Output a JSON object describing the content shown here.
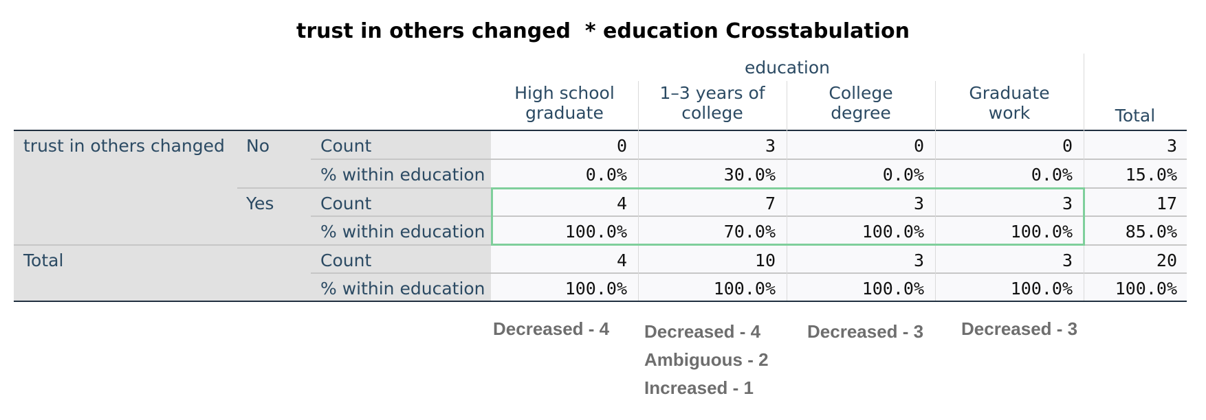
{
  "title": "trust in others changed  * education Crosstabulation",
  "column_group_label": "education",
  "columns": [
    {
      "line1": "High school",
      "line2": "graduate"
    },
    {
      "line1": "1–3 years of",
      "line2": "college"
    },
    {
      "line1": "College",
      "line2": "degree"
    },
    {
      "line1": "Graduate",
      "line2": "work"
    }
  ],
  "total_column_label": "Total",
  "row_variable_label": "trust in others changed",
  "row_groups": [
    {
      "label": "No",
      "rows": [
        {
          "stat": "Count",
          "values": [
            "0",
            "3",
            "0",
            "0"
          ],
          "total": "3"
        },
        {
          "stat": "% within education",
          "values": [
            "0.0%",
            "30.0%",
            "0.0%",
            "0.0%"
          ],
          "total": "15.0%"
        }
      ]
    },
    {
      "label": "Yes",
      "rows": [
        {
          "stat": "Count",
          "values": [
            "4",
            "7",
            "3",
            "3"
          ],
          "total": "17"
        },
        {
          "stat": "% within education",
          "values": [
            "100.0%",
            "70.0%",
            "100.0%",
            "100.0%"
          ],
          "total": "85.0%"
        }
      ]
    }
  ],
  "total_group": {
    "label": "Total",
    "rows": [
      {
        "stat": "Count",
        "values": [
          "4",
          "10",
          "3",
          "3"
        ],
        "total": "20"
      },
      {
        "stat": "% within education",
        "values": [
          "100.0%",
          "100.0%",
          "100.0%",
          "100.0%"
        ],
        "total": "100.0%"
      }
    ]
  },
  "highlight_color": "#7fcf9b",
  "annotations": [
    [
      "Decreased - 4"
    ],
    [
      "Decreased - 4",
      "Ambiguous - 2",
      "Increased - 1"
    ],
    [
      "Decreased - 3"
    ],
    [
      "Decreased - 3"
    ]
  ]
}
